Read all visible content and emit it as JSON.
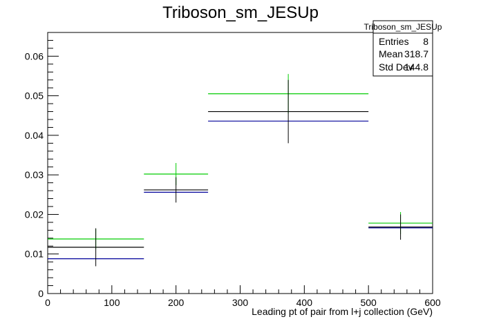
{
  "chart_data": {
    "type": "histogram",
    "title": "Triboson_sm_JESUp",
    "xlabel": "Leading pt of pair from l+j collection (GeV)",
    "ylabel": "",
    "xlim": [
      0,
      600
    ],
    "ylim": [
      0,
      0.066
    ],
    "x_ticks": [
      0,
      100,
      200,
      300,
      400,
      500,
      600
    ],
    "y_ticks": [
      0,
      0.01,
      0.02,
      0.03,
      0.04,
      0.05,
      0.06
    ],
    "grid": false,
    "stats_box": {
      "title": "Triboson_sm_JESUp",
      "rows": [
        {
          "label": "Entries",
          "value": "8"
        },
        {
          "label": "Mean",
          "value": "318.7"
        },
        {
          "label": "Std Dev",
          "value": "144.8"
        }
      ],
      "placement": "top-right"
    },
    "bins": [
      {
        "x_low": 0,
        "x_high": 150,
        "x_center": 75
      },
      {
        "x_low": 150,
        "x_high": 250,
        "x_center": 200
      },
      {
        "x_low": 250,
        "x_high": 500,
        "x_center": 375
      },
      {
        "x_low": 500,
        "x_high": 600,
        "x_center": 550
      }
    ],
    "series": [
      {
        "color": "#00cc00",
        "values": [
          0.0138,
          0.0302,
          0.0505,
          0.0178
        ]
      },
      {
        "color": "#000000",
        "values": [
          0.0117,
          0.0262,
          0.046,
          0.0168
        ],
        "errors": [
          0.0048,
          0.0032,
          0.008,
          0.0032
        ]
      },
      {
        "color": "#000099",
        "values": [
          0.0088,
          0.0256,
          0.0436,
          0.0166
        ]
      }
    ]
  }
}
